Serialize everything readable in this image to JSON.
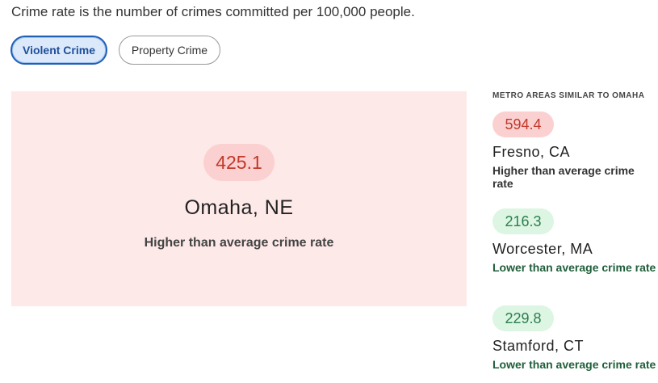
{
  "intro": "Crime rate is the number of crimes committed per 100,000 people.",
  "tabs": [
    "Violent Crime",
    "Property Crime"
  ],
  "selected": {
    "rate": "425.1",
    "city": "Omaha, NE",
    "status": "Higher than average crime rate"
  },
  "similar": {
    "title": "METRO AREAS SIMILAR TO OMAHA",
    "items": [
      {
        "rate": "594.4",
        "city": "Fresno, CA",
        "status": "Higher than average crime rate"
      },
      {
        "rate": "216.3",
        "city": "Worcester, MA",
        "status": "Lower than average crime rate"
      },
      {
        "rate": "229.8",
        "city": "Stamford, CT",
        "status": "Lower than average crime rate"
      }
    ]
  }
}
